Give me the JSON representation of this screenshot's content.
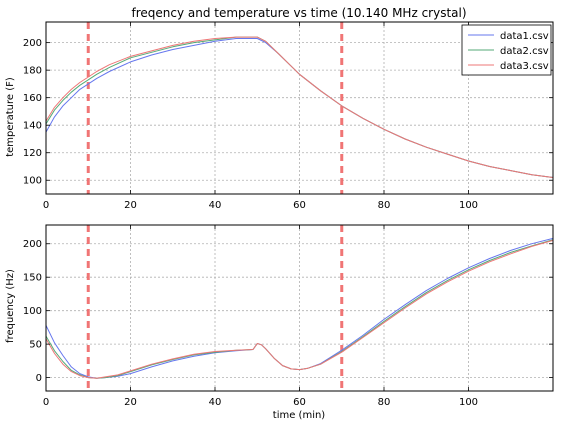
{
  "chart_data": [
    {
      "type": "line",
      "title": "freqency and temperature vs time (10.140 MHz crystal)",
      "xlabel": "",
      "ylabel": "temperature (F)",
      "xlim": [
        0,
        120
      ],
      "ylim": [
        90,
        215
      ],
      "xticks": [
        "0",
        "20",
        "40",
        "60",
        "80",
        "100"
      ],
      "yticks": [
        "100",
        "120",
        "140",
        "160",
        "180",
        "200"
      ],
      "grid": true,
      "legend": "top-right",
      "markers_x": [
        10,
        70
      ],
      "series": [
        {
          "name": "data1.csv",
          "x": [
            0,
            2,
            4,
            6,
            8,
            10,
            12,
            15,
            20,
            25,
            30,
            35,
            40,
            45,
            48,
            50,
            52,
            55,
            60,
            65,
            70,
            75,
            80,
            85,
            90,
            95,
            100,
            105,
            110,
            115,
            120
          ],
          "y": [
            135,
            146,
            154,
            160,
            166,
            170,
            174,
            179,
            186,
            191,
            195,
            198,
            201,
            203,
            203,
            203,
            200,
            192,
            177,
            165,
            154,
            145,
            137,
            130,
            124,
            119,
            114,
            110,
            107,
            104,
            102
          ]
        },
        {
          "name": "data2.csv",
          "x": [
            0,
            2,
            4,
            6,
            8,
            10,
            12,
            15,
            20,
            25,
            30,
            35,
            40,
            45,
            48,
            50,
            52,
            55,
            60,
            65,
            70,
            75,
            80,
            85,
            90,
            95,
            100,
            105,
            110,
            115,
            120
          ],
          "y": [
            141,
            151,
            158,
            164,
            169,
            173,
            177,
            182,
            189,
            193,
            197,
            200,
            202,
            204,
            204,
            204,
            201,
            192,
            177,
            165,
            154,
            145,
            137,
            130,
            124,
            119,
            114,
            110,
            107,
            104,
            102
          ]
        },
        {
          "name": "data3.csv",
          "x": [
            0,
            2,
            4,
            6,
            8,
            10,
            12,
            15,
            20,
            25,
            30,
            35,
            40,
            45,
            48,
            50,
            52,
            55,
            60,
            65,
            70,
            75,
            80,
            85,
            90,
            95,
            100,
            105,
            110,
            115,
            120
          ],
          "y": [
            143,
            153,
            160,
            166,
            171,
            175,
            179,
            184,
            190,
            194,
            198,
            201,
            203,
            204,
            204,
            204,
            201,
            192,
            177,
            165,
            154,
            145,
            137,
            130,
            124,
            119,
            114,
            110,
            107,
            104,
            102
          ]
        }
      ]
    },
    {
      "type": "line",
      "title": "",
      "xlabel": "time (min)",
      "ylabel": "frequency (Hz)",
      "xlim": [
        0,
        120
      ],
      "ylim": [
        -20,
        228
      ],
      "xticks": [
        "0",
        "20",
        "40",
        "60",
        "80",
        "100"
      ],
      "yticks": [
        "0",
        "50",
        "100",
        "150",
        "200"
      ],
      "grid": true,
      "legend": "none",
      "markers_x": [
        10,
        70
      ],
      "series": [
        {
          "name": "data1.csv",
          "x": [
            0,
            2,
            4,
            6,
            8,
            10,
            12,
            14,
            17,
            20,
            25,
            30,
            35,
            40,
            45,
            49,
            50,
            51,
            52,
            54,
            56,
            58,
            60,
            62,
            65,
            70,
            75,
            80,
            85,
            90,
            95,
            100,
            105,
            110,
            115,
            120
          ],
          "y": [
            78,
            52,
            33,
            16,
            6,
            1,
            -1,
            0,
            2,
            6,
            16,
            25,
            32,
            37,
            40,
            42,
            51,
            49,
            43,
            29,
            18,
            13,
            12,
            14,
            21,
            41,
            63,
            87,
            109,
            130,
            148,
            164,
            178,
            190,
            200,
            208
          ]
        },
        {
          "name": "data2.csv",
          "x": [
            0,
            2,
            4,
            6,
            8,
            10,
            12,
            14,
            17,
            20,
            25,
            30,
            35,
            40,
            45,
            49,
            50,
            51,
            52,
            54,
            56,
            58,
            60,
            62,
            65,
            70,
            75,
            80,
            85,
            90,
            95,
            100,
            105,
            110,
            115,
            120
          ],
          "y": [
            62,
            40,
            24,
            11,
            4,
            0,
            -1,
            0,
            3,
            9,
            19,
            27,
            34,
            38,
            41,
            42,
            51,
            49,
            43,
            29,
            18,
            13,
            12,
            14,
            20,
            39,
            61,
            84,
            106,
            127,
            145,
            161,
            175,
            187,
            197,
            206
          ]
        },
        {
          "name": "data3.csv",
          "x": [
            0,
            2,
            4,
            6,
            8,
            10,
            12,
            14,
            17,
            20,
            25,
            30,
            35,
            40,
            45,
            49,
            50,
            51,
            52,
            54,
            56,
            58,
            60,
            62,
            65,
            70,
            75,
            80,
            85,
            90,
            95,
            100,
            105,
            110,
            115,
            120
          ],
          "y": [
            58,
            36,
            20,
            9,
            3,
            0,
            -1,
            1,
            4,
            10,
            20,
            28,
            35,
            39,
            41,
            42,
            51,
            49,
            43,
            29,
            18,
            13,
            12,
            14,
            20,
            38,
            60,
            82,
            104,
            125,
            143,
            159,
            173,
            185,
            196,
            205
          ]
        }
      ]
    }
  ],
  "colors": {
    "series": [
      "#6677ee",
      "#55aa77",
      "#ee7777"
    ],
    "marker_line": "#ee6666",
    "grid": "#b0b0b0",
    "axes": "#000000"
  }
}
